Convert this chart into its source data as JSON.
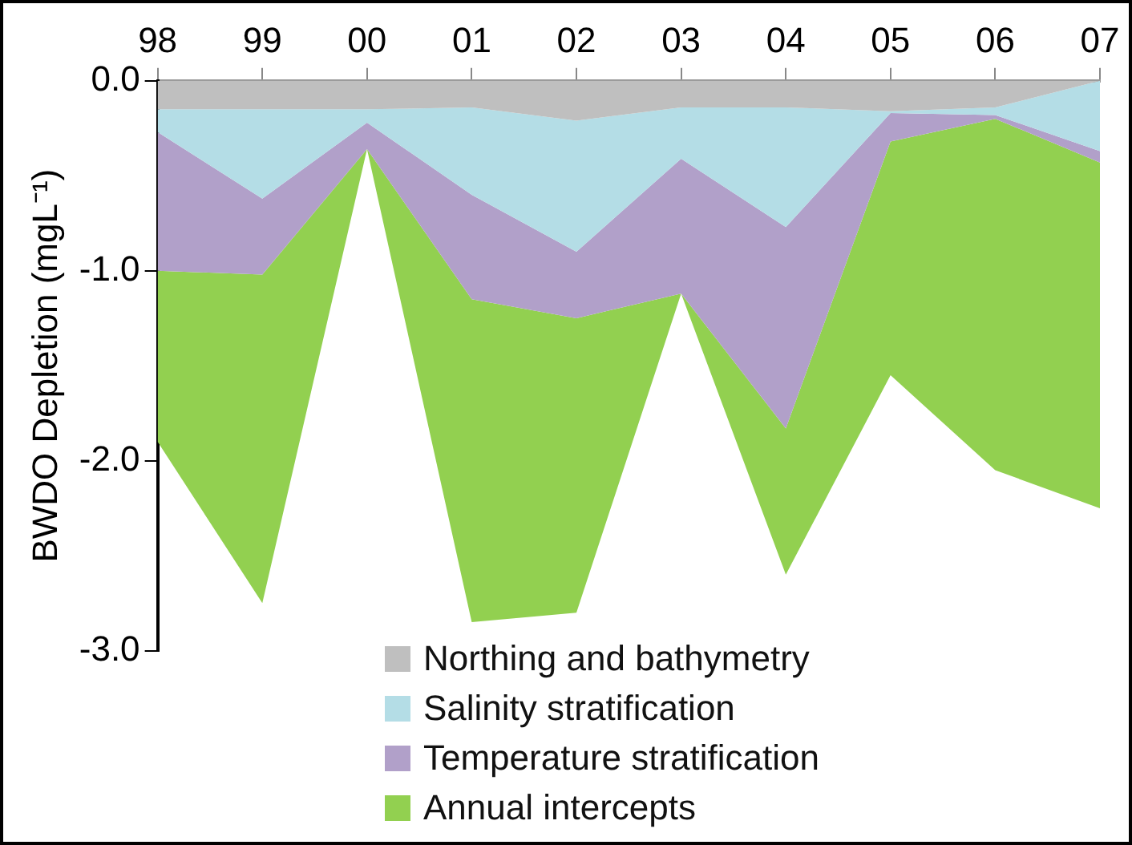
{
  "chart_data": {
    "type": "area",
    "stacked": true,
    "ylabel": "BWDO Depletion (mgL⁻¹)",
    "categories": [
      "98",
      "99",
      "00",
      "01",
      "02",
      "03",
      "04",
      "05",
      "06",
      "07"
    ],
    "series": [
      {
        "name": "Northing and bathymetry",
        "color": "#bfbfbf",
        "values": [
          -0.15,
          -0.15,
          -0.15,
          -0.14,
          -0.21,
          -0.14,
          -0.14,
          -0.16,
          -0.14,
          0
        ]
      },
      {
        "name": "Salinity stratification",
        "color": "#b4dde6",
        "values": [
          -0.12,
          -0.47,
          -0.07,
          -0.46,
          -0.69,
          -0.27,
          -0.63,
          -0.01,
          -0.04,
          -0.37
        ]
      },
      {
        "name": "Temperature stratification",
        "color": "#b1a0c9",
        "values": [
          -0.73,
          -0.4,
          -0.14,
          -0.55,
          -0.35,
          -0.71,
          -1.06,
          -0.15,
          -0.02,
          -0.06
        ]
      },
      {
        "name": "Annual intercepts",
        "color": "#92d050",
        "values": [
          -0.9,
          -1.73,
          0,
          -1.7,
          -1.55,
          0,
          -0.77,
          -1.23,
          -1.85,
          -1.82
        ]
      }
    ],
    "ylim": [
      -3,
      0
    ],
    "yticks": [
      {
        "value": 0,
        "label": "0.0"
      },
      {
        "value": -1,
        "label": "-1.0"
      },
      {
        "value": -2,
        "label": "-2.0"
      },
      {
        "value": -3,
        "label": "-3.0"
      }
    ],
    "grid": false,
    "legend": "bottom"
  }
}
